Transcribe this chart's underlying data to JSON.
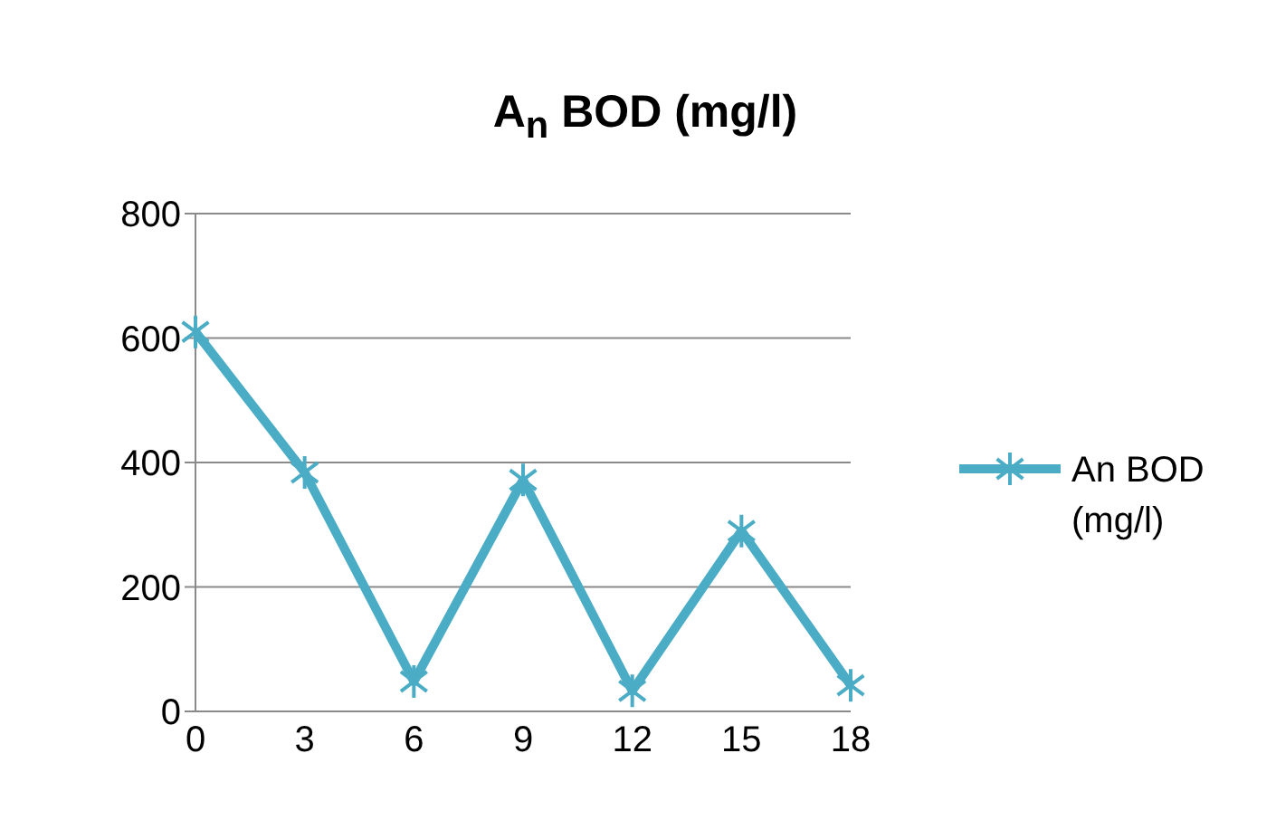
{
  "chart_data": {
    "type": "line",
    "title": "A$_{n}$ BOD (mg/l)",
    "categories": [
      "0",
      "3",
      "6",
      "9",
      "12",
      "15",
      "18"
    ],
    "series": [
      {
        "name": "An BOD (mg/l)",
        "color": "#4bacc6",
        "values": [
          610,
          384,
          48,
          372,
          33,
          290,
          42
        ]
      }
    ],
    "ylim": [
      0,
      800
    ],
    "yticks": [
      0,
      200,
      400,
      600,
      800
    ],
    "grid": "y",
    "legend": "right",
    "marker": "cross",
    "line_style": "solid"
  }
}
